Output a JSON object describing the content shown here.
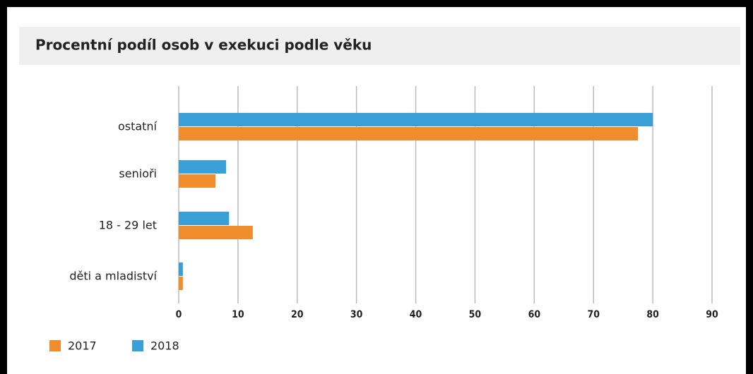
{
  "chart_data": {
    "type": "hbar",
    "title": "Procentní podíl osob v exekuci podle věku",
    "categories": [
      "ostatní",
      "senioři",
      "18 - 29 let",
      "děti a mladiství"
    ],
    "series": [
      {
        "name": "2017",
        "color": "#ef8d2c",
        "values": [
          77.5,
          6.2,
          12.5,
          0.7
        ]
      },
      {
        "name": "2018",
        "color": "#3a9fd6",
        "values": [
          80,
          8,
          8.5,
          0.7
        ]
      }
    ],
    "xlim": [
      0,
      90
    ],
    "xticks": [
      0,
      10,
      20,
      30,
      40,
      50,
      60,
      70,
      80,
      90
    ],
    "grid": true,
    "legend": "bottom-left"
  }
}
